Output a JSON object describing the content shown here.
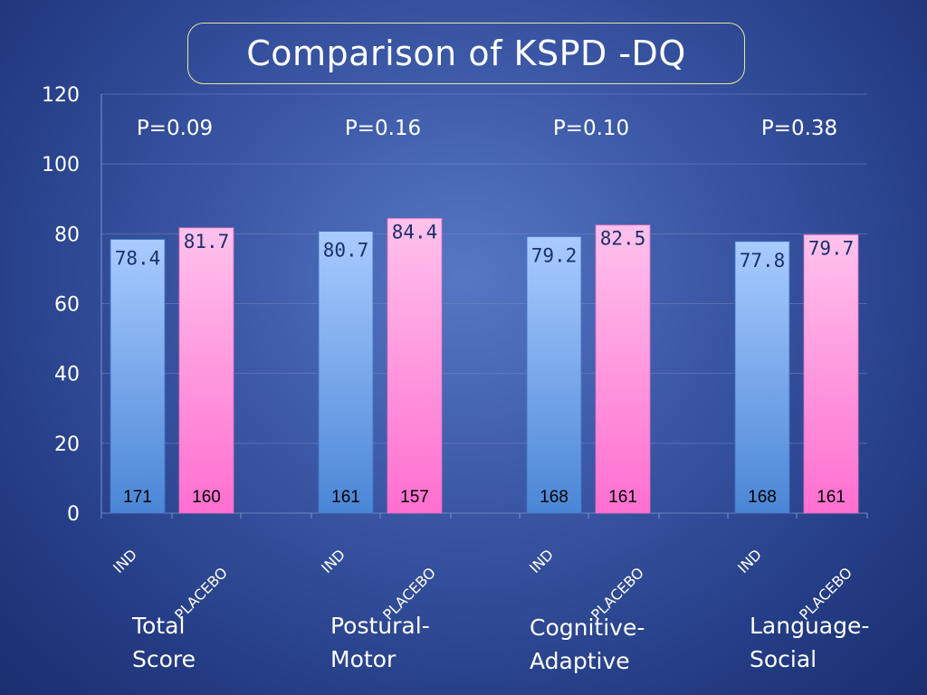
{
  "title": "Comparison of KSPD -DQ",
  "chart_data": {
    "type": "bar",
    "title": "Comparison of KSPD -DQ",
    "ylim": [
      0,
      120
    ],
    "yticks": [
      0,
      20,
      40,
      60,
      80,
      100,
      120
    ],
    "grid": true,
    "series": [
      {
        "name": "IND",
        "color": "#5b9ae8",
        "values": [
          78.4,
          80.7,
          79.2,
          77.8
        ],
        "counts": [
          "171",
          "161",
          "168",
          "168"
        ]
      },
      {
        "name": "PLACEBO",
        "color": "#ff8ed8",
        "values": [
          81.7,
          84.4,
          82.5,
          79.7
        ],
        "counts": [
          "160",
          "157",
          "161",
          "161"
        ]
      }
    ],
    "groups": [
      {
        "label_lines": [
          "Total",
          "Score"
        ],
        "p_value": "P=0.09"
      },
      {
        "label_lines": [
          "Postural-",
          "Motor"
        ],
        "p_value": "P=0.16"
      },
      {
        "label_lines": [
          "Cognitive-",
          "Adaptive"
        ],
        "p_value": "P=0.10"
      },
      {
        "label_lines": [
          "Language-",
          "Social"
        ],
        "p_value": "P=0.38"
      }
    ],
    "category_tick_labels": [
      "IND",
      "PLACEBO"
    ]
  }
}
